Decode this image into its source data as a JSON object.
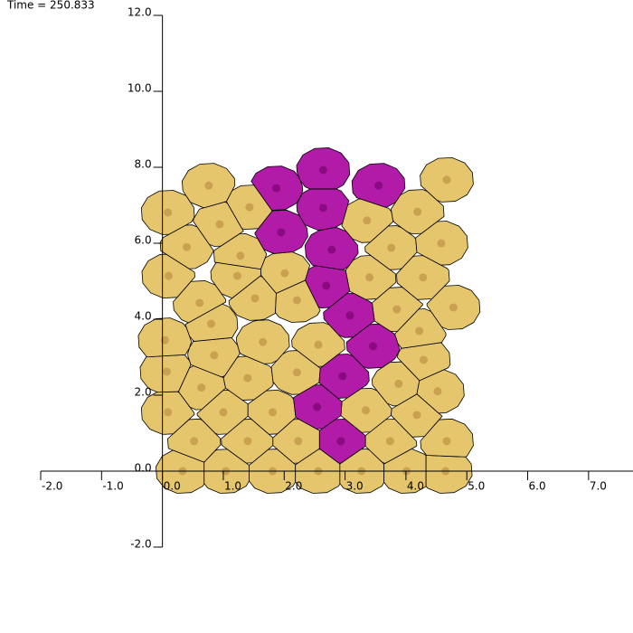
{
  "chart_data": {
    "type": "scatter",
    "title": "Time = 250.833",
    "xlim": [
      -2,
      7.73
    ],
    "ylim": [
      -2,
      12
    ],
    "xticks": [
      {
        "value": -2,
        "label": "-2.0"
      },
      {
        "value": -1,
        "label": "-1.0"
      },
      {
        "value": 0,
        "label": "0.0"
      },
      {
        "value": 1,
        "label": "1.0"
      },
      {
        "value": 2,
        "label": "2.0"
      },
      {
        "value": 3,
        "label": "3.0"
      },
      {
        "value": 4,
        "label": "4.0"
      },
      {
        "value": 5,
        "label": "5.0"
      },
      {
        "value": 6,
        "label": "6.0"
      },
      {
        "value": 7,
        "label": "7.0"
      }
    ],
    "yticks": [
      {
        "value": -2,
        "label": "-2.0"
      },
      {
        "value": 0,
        "label": "0.0"
      },
      {
        "value": 2,
        "label": "2.0"
      },
      {
        "value": 4,
        "label": "4.0"
      },
      {
        "value": 6,
        "label": "6.0"
      },
      {
        "value": 8,
        "label": "8.0"
      },
      {
        "value": 10,
        "label": "10.0"
      },
      {
        "value": 12,
        "label": "12.0"
      }
    ],
    "series": [
      {
        "color": "#e5c66c",
        "nucleus_color": "#c9a150",
        "x": [
          0.33,
          1.04,
          1.81,
          2.56,
          3.27,
          4.01,
          4.65,
          0.52,
          1.4,
          2.23,
          3.74,
          4.67,
          0.09,
          1.0,
          1.81,
          3.34,
          4.18,
          0.64,
          1.4,
          3.88,
          4.52,
          0.07,
          2.21,
          0.85,
          1.65,
          2.56,
          4.29,
          0.04,
          0.8,
          4.22,
          0.61,
          1.52,
          2.21,
          3.85,
          4.78,
          0.1,
          1.23,
          2.01,
          3.4,
          4.28,
          1.28,
          0.4,
          3.76,
          4.58,
          0.09,
          0.94,
          1.43,
          3.36,
          4.19,
          0.76,
          4.67
        ],
        "y": [
          0.0,
          0.0,
          0.0,
          0.0,
          0.0,
          0.0,
          0.0,
          0.79,
          0.79,
          0.79,
          0.79,
          0.79,
          1.55,
          1.55,
          1.55,
          1.6,
          1.48,
          2.2,
          2.45,
          2.3,
          2.1,
          2.62,
          2.6,
          3.05,
          3.4,
          3.33,
          2.93,
          3.45,
          3.88,
          3.69,
          4.43,
          4.55,
          4.5,
          4.26,
          4.31,
          5.14,
          5.14,
          5.21,
          5.1,
          5.1,
          5.67,
          5.9,
          5.88,
          6.0,
          6.81,
          6.5,
          6.95,
          6.6,
          6.83,
          7.52,
          7.67
        ]
      },
      {
        "color": "#b21aa8",
        "nucleus_color": "#8a0a80",
        "x": [
          2.93,
          2.54,
          2.96,
          3.46,
          3.08,
          2.69,
          2.78,
          1.95,
          2.64,
          1.87,
          2.64,
          3.55
        ],
        "y": [
          0.79,
          1.69,
          2.5,
          3.29,
          4.1,
          4.88,
          5.83,
          6.29,
          6.93,
          7.45,
          7.93,
          7.52
        ]
      }
    ]
  }
}
